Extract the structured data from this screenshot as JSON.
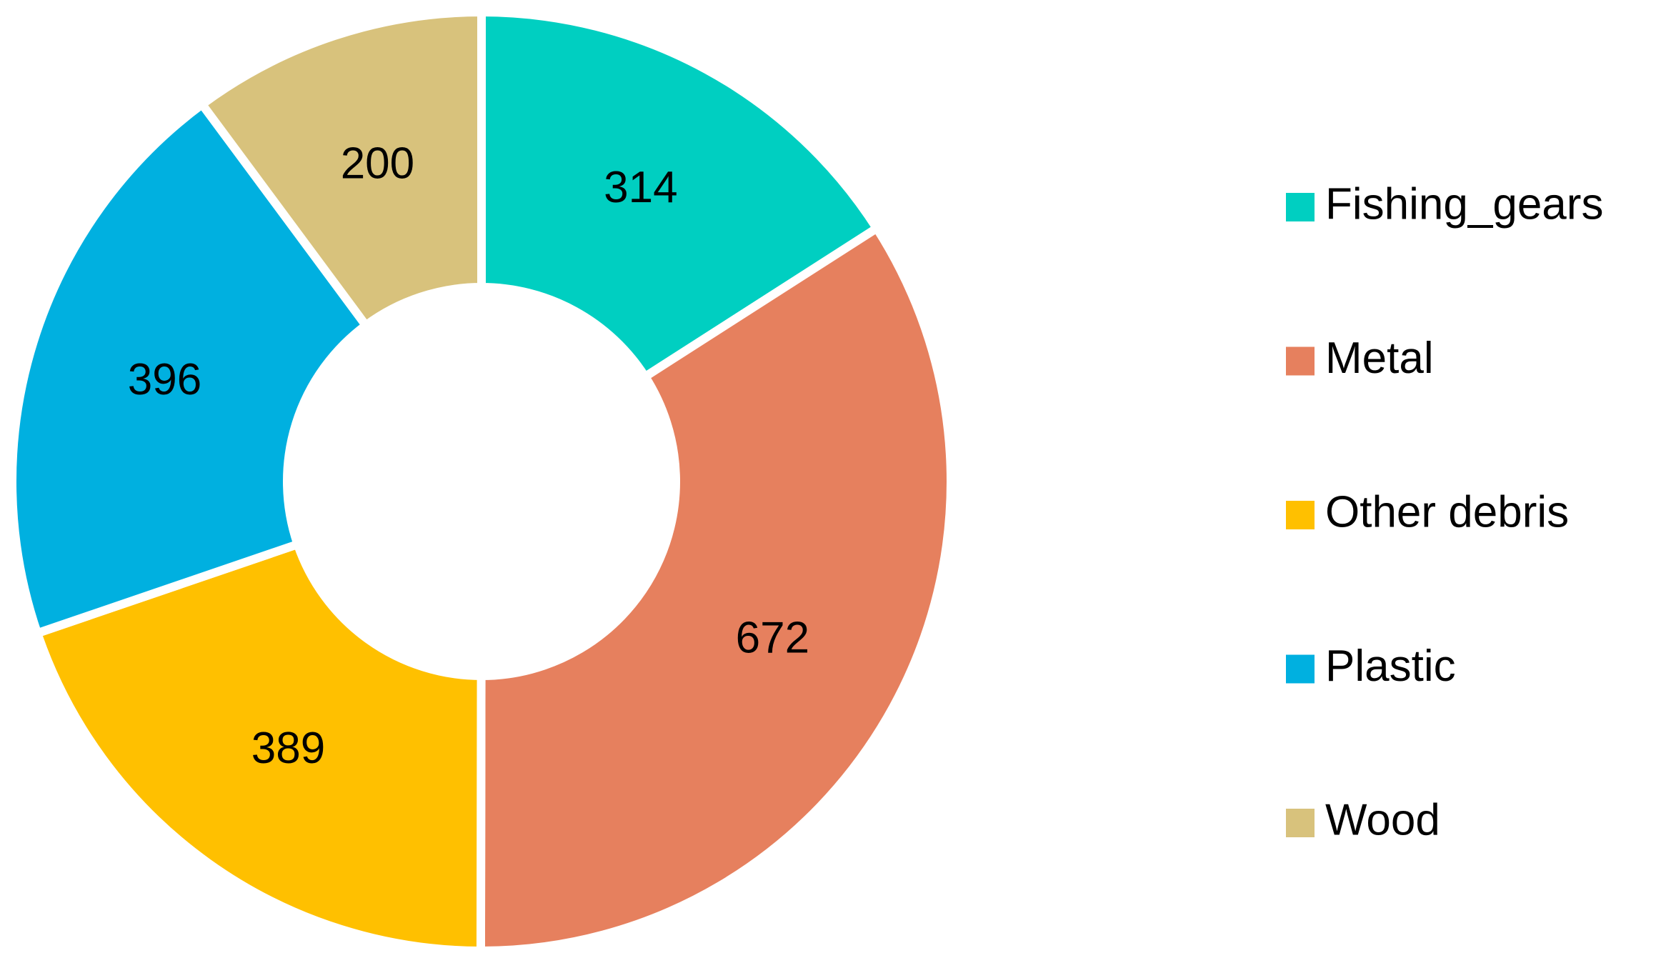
{
  "chart_data": {
    "type": "donut",
    "categories": [
      "Fishing_gears",
      "Metal",
      "Other debris",
      "Plastic",
      "Wood"
    ],
    "values": [
      314,
      672,
      389,
      396,
      200
    ],
    "colors": [
      "#00CFC1",
      "#E6805E",
      "#FFC000",
      "#00B0E0",
      "#D8C27C"
    ],
    "legend": "right"
  }
}
